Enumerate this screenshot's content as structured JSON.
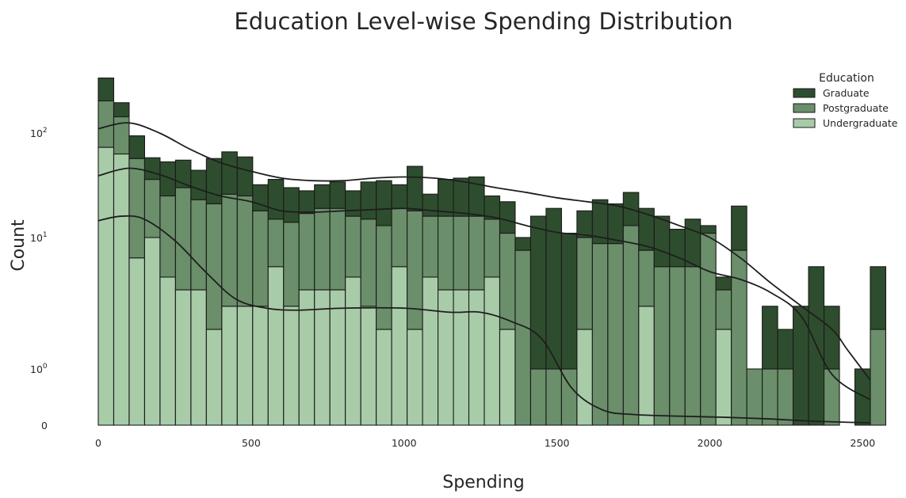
{
  "chart_data": {
    "type": "histogram",
    "title": "Education Level-wise Spending Distribution",
    "xlabel": "Spending",
    "ylabel": "Count",
    "xlim": [
      0,
      2525
    ],
    "x_ticks": [
      {
        "value": 0,
        "label": "0"
      },
      {
        "value": 500,
        "label": "500"
      },
      {
        "value": 1000,
        "label": "1000"
      },
      {
        "value": 1500,
        "label": "1500"
      },
      {
        "value": 2000,
        "label": "2000"
      },
      {
        "value": 2500,
        "label": "2500"
      }
    ],
    "y_scale": "symlog",
    "y_ticks": [
      {
        "value": 0,
        "label": "0",
        "base": null
      },
      {
        "value": 1,
        "label": "",
        "base": "10",
        "exp": "0"
      },
      {
        "value": 10,
        "label": "",
        "base": "10",
        "exp": "1"
      },
      {
        "value": 100,
        "label": "",
        "base": "10",
        "exp": "2"
      }
    ],
    "multiple": "stack",
    "grid": false,
    "bin_width": 50.5,
    "bin_start": 0,
    "legend": {
      "title": "Education",
      "position": "top-right"
    },
    "colors": {
      "Graduate": "#2e4d2e",
      "Postgraduate": "#6a8f6a",
      "Undergraduate": "#a8cba8",
      "edge": "#1a1a1a",
      "kde": "#1e1e1e"
    },
    "series": [
      {
        "name": "Undergraduate",
        "values": [
          73,
          63,
          7,
          10,
          5,
          4,
          4,
          2,
          3,
          3,
          3,
          6,
          3,
          4,
          4,
          4,
          5,
          3,
          2,
          6,
          2,
          5,
          4,
          4,
          4,
          5,
          2,
          0,
          0,
          0,
          0,
          2,
          0,
          0,
          0,
          3,
          0,
          0,
          0,
          0,
          2,
          0,
          0,
          0,
          0,
          0,
          0,
          0,
          0,
          0,
          0
        ]
      },
      {
        "name": "Postgraduate",
        "values": [
          130,
          80,
          50,
          26,
          20,
          26,
          19,
          19,
          23,
          22,
          15,
          9,
          11,
          13,
          15,
          15,
          11,
          12,
          11,
          13,
          16,
          11,
          12,
          12,
          12,
          10,
          9,
          8,
          1,
          1,
          1,
          8,
          9,
          9,
          13,
          5,
          6,
          6,
          6,
          11,
          2,
          8,
          1,
          1,
          1,
          0,
          0,
          1,
          0,
          0,
          2
        ]
      },
      {
        "name": "Graduate",
        "values": [
          133,
          52,
          37,
          22,
          28,
          25,
          21,
          36,
          40,
          34,
          14,
          21,
          16,
          11,
          13,
          15,
          12,
          19,
          22,
          13,
          30,
          10,
          20,
          21,
          22,
          10,
          11,
          2,
          15,
          18,
          10,
          8,
          14,
          12,
          14,
          11,
          10,
          6,
          9,
          2,
          1,
          12,
          0,
          2,
          1,
          3,
          6,
          2,
          0,
          1,
          4
        ]
      }
    ],
    "kde": [
      {
        "name": "Undergraduate",
        "points": [
          [
            0,
            14.5
          ],
          [
            75,
            16
          ],
          [
            150,
            15
          ],
          [
            250,
            9.5
          ],
          [
            350,
            5.5
          ],
          [
            450,
            3.4
          ],
          [
            550,
            2.9
          ],
          [
            650,
            2.8
          ],
          [
            800,
            2.9
          ],
          [
            1000,
            2.9
          ],
          [
            1150,
            2.7
          ],
          [
            1250,
            2.7
          ],
          [
            1350,
            2.3
          ],
          [
            1450,
            1.7
          ],
          [
            1550,
            0.65
          ],
          [
            1650,
            0.27
          ],
          [
            1750,
            0.19
          ],
          [
            1900,
            0.16
          ],
          [
            2050,
            0.14
          ],
          [
            2200,
            0.11
          ],
          [
            2300,
            0.08
          ],
          [
            2400,
            0.06
          ],
          [
            2525,
            0.04
          ]
        ]
      },
      {
        "name": "Postgraduate",
        "points": [
          [
            0,
            39
          ],
          [
            100,
            46
          ],
          [
            200,
            40
          ],
          [
            300,
            31
          ],
          [
            400,
            25
          ],
          [
            500,
            22
          ],
          [
            600,
            18
          ],
          [
            700,
            17.5
          ],
          [
            800,
            18
          ],
          [
            900,
            18.5
          ],
          [
            1000,
            19
          ],
          [
            1100,
            18
          ],
          [
            1200,
            17
          ],
          [
            1300,
            15.5
          ],
          [
            1400,
            13
          ],
          [
            1500,
            11.2
          ],
          [
            1600,
            10.5
          ],
          [
            1700,
            9.5
          ],
          [
            1800,
            8.5
          ],
          [
            1900,
            7
          ],
          [
            2000,
            5.5
          ],
          [
            2100,
            4.8
          ],
          [
            2200,
            3.8
          ],
          [
            2300,
            2.5
          ],
          [
            2400,
            0.9
          ],
          [
            2525,
            0.45
          ]
        ]
      },
      {
        "name": "Graduate",
        "points": [
          [
            0,
            110
          ],
          [
            100,
            125
          ],
          [
            200,
            100
          ],
          [
            300,
            70
          ],
          [
            400,
            52
          ],
          [
            500,
            43
          ],
          [
            600,
            37
          ],
          [
            700,
            35
          ],
          [
            800,
            35
          ],
          [
            900,
            37
          ],
          [
            1000,
            38
          ],
          [
            1100,
            37
          ],
          [
            1200,
            34
          ],
          [
            1300,
            30
          ],
          [
            1400,
            27
          ],
          [
            1500,
            24
          ],
          [
            1600,
            22
          ],
          [
            1700,
            20
          ],
          [
            1800,
            16.5
          ],
          [
            1900,
            13
          ],
          [
            2000,
            10
          ],
          [
            2100,
            7
          ],
          [
            2200,
            4.5
          ],
          [
            2300,
            3
          ],
          [
            2400,
            2
          ],
          [
            2450,
            1.4
          ],
          [
            2525,
            0.8
          ]
        ]
      }
    ]
  }
}
